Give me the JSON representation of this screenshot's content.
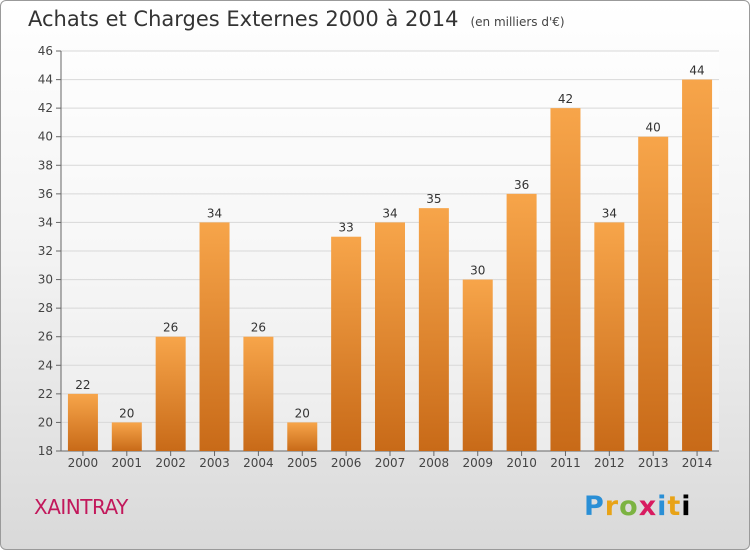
{
  "header": {
    "title": "Achats et Charges Externes 2000 à 2014",
    "subtitle": "(en milliers d'€)"
  },
  "footer": {
    "commune": "XAINTRAY",
    "logo_text": "Proxiti"
  },
  "colors": {
    "bar_light": "#f7a54a",
    "bar_dark": "#c86a18",
    "grid": "#d8d8d8",
    "axis_text": "#444444"
  },
  "chart_data": {
    "type": "bar",
    "title": "Achats et Charges Externes 2000 à 2014",
    "subtitle": "(en milliers d'€)",
    "categories": [
      "2000",
      "2001",
      "2002",
      "2003",
      "2004",
      "2005",
      "2006",
      "2007",
      "2008",
      "2009",
      "2010",
      "2011",
      "2012",
      "2013",
      "2014"
    ],
    "values": [
      22,
      20,
      26,
      34,
      26,
      20,
      33,
      34,
      35,
      30,
      36,
      42,
      34,
      40,
      44
    ],
    "ylim": [
      18,
      46
    ],
    "yticks": [
      18,
      20,
      22,
      24,
      26,
      28,
      30,
      32,
      34,
      36,
      38,
      40,
      42,
      44,
      46
    ],
    "grid": true,
    "data_labels": true
  }
}
